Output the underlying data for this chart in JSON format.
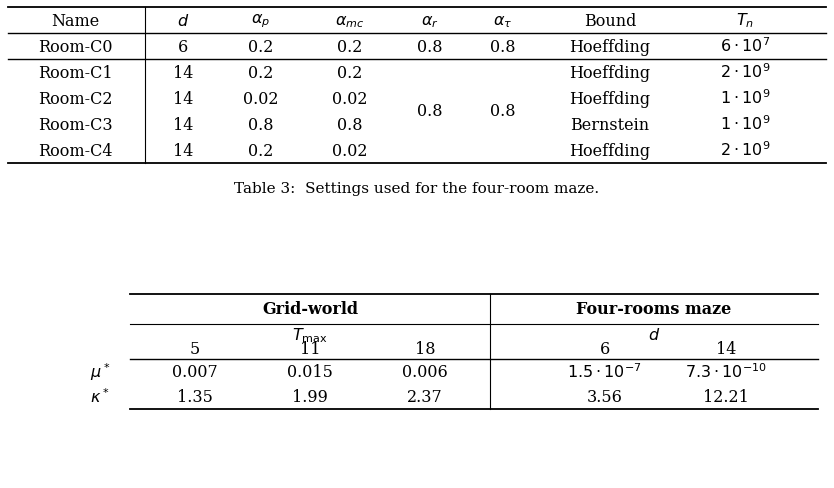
{
  "table1": {
    "caption": "Table 3:  Settings used for the four-room maze.",
    "rows": [
      {
        "name": "Room-C0",
        "d": "6",
        "alpha_p": "0.2",
        "alpha_mc": "0.2",
        "alpha_r": "0.8",
        "alpha_tau": "0.8",
        "bound": "Hoeffding",
        "tn": "$6 \\cdot 10^7$"
      },
      {
        "name": "Room-C1",
        "d": "14",
        "alpha_p": "0.2",
        "alpha_mc": "0.2",
        "alpha_r": "",
        "alpha_tau": "",
        "bound": "Hoeffding",
        "tn": "$2 \\cdot 10^9$"
      },
      {
        "name": "Room-C2",
        "d": "14",
        "alpha_p": "0.02",
        "alpha_mc": "0.02",
        "alpha_r": "0.8",
        "alpha_tau": "0.8",
        "bound": "Hoeffding",
        "tn": "$1 \\cdot 10^9$"
      },
      {
        "name": "Room-C3",
        "d": "14",
        "alpha_p": "0.8",
        "alpha_mc": "0.8",
        "alpha_r": "",
        "alpha_tau": "",
        "bound": "Bernstein",
        "tn": "$1 \\cdot 10^9$"
      },
      {
        "name": "Room-C4",
        "d": "14",
        "alpha_p": "0.2",
        "alpha_mc": "0.02",
        "alpha_r": "",
        "alpha_tau": "",
        "bound": "Hoeffding",
        "tn": "$2 \\cdot 10^9$"
      }
    ]
  },
  "table2": {
    "group1_header": "Grid-world",
    "group2_header": "Four-rooms maze",
    "col_vals": [
      "5",
      "11",
      "18",
      "6",
      "14"
    ],
    "row_labels": [
      "$\\mu^*$",
      "$\\kappa^*$"
    ],
    "data": [
      [
        "0.007",
        "0.015",
        "0.006",
        "$1.5 \\cdot 10^{-7}$",
        "$7.3 \\cdot 10^{-10}$"
      ],
      [
        "1.35",
        "1.99",
        "2.37",
        "3.56",
        "12.21"
      ]
    ]
  },
  "bg_color": "#ffffff",
  "text_color": "#000000"
}
